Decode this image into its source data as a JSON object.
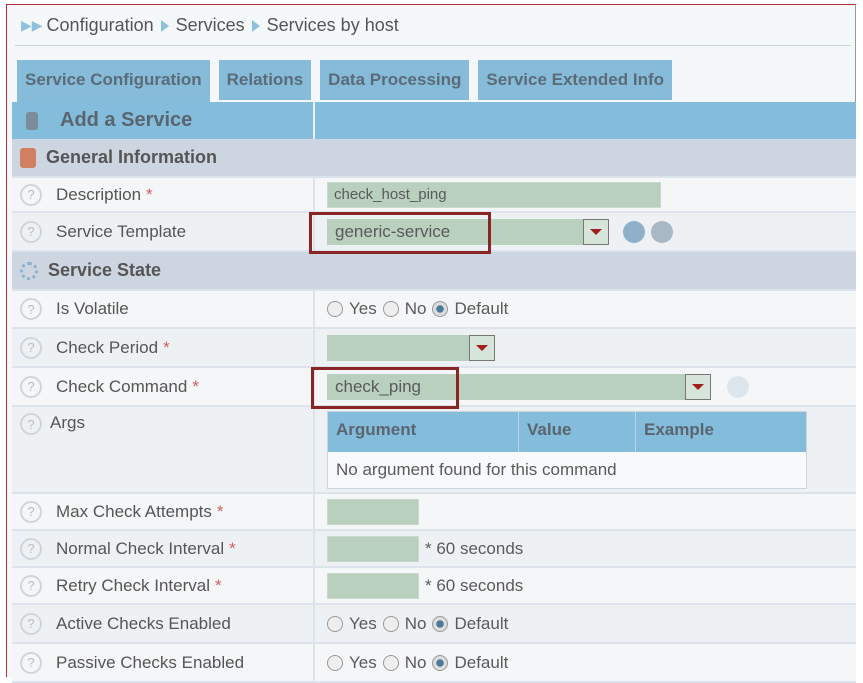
{
  "breadcrumb": [
    "Configuration",
    "Services",
    "Services by host"
  ],
  "tabs": [
    "Service Configuration",
    "Relations",
    "Data Processing",
    "Service Extended Info"
  ],
  "header": "Add a Service",
  "sections": {
    "general": "General Information",
    "state": "Service State"
  },
  "fields": {
    "description": {
      "label": "Description",
      "value": "check_host_ping"
    },
    "template": {
      "label": "Service Template",
      "value": "generic-service"
    },
    "volatile": {
      "label": "Is Volatile"
    },
    "period": {
      "label": "Check Period",
      "value": ""
    },
    "command": {
      "label": "Check Command",
      "value": "check_ping"
    },
    "args": {
      "label": "Args",
      "columns": [
        "Argument",
        "Value",
        "Example"
      ],
      "empty": "No argument found for this command"
    },
    "max": {
      "label": "Max Check Attempts"
    },
    "normal": {
      "label": "Normal Check Interval",
      "unit": "* 60 seconds"
    },
    "retry": {
      "label": "Retry Check Interval",
      "unit": "* 60 seconds"
    },
    "active": {
      "label": "Active Checks Enabled"
    },
    "passive": {
      "label": "Passive Checks Enabled"
    }
  },
  "radio": {
    "yes": "Yes",
    "no": "No",
    "default": "Default",
    "selected": "Default"
  },
  "req": "*",
  "help": "?"
}
